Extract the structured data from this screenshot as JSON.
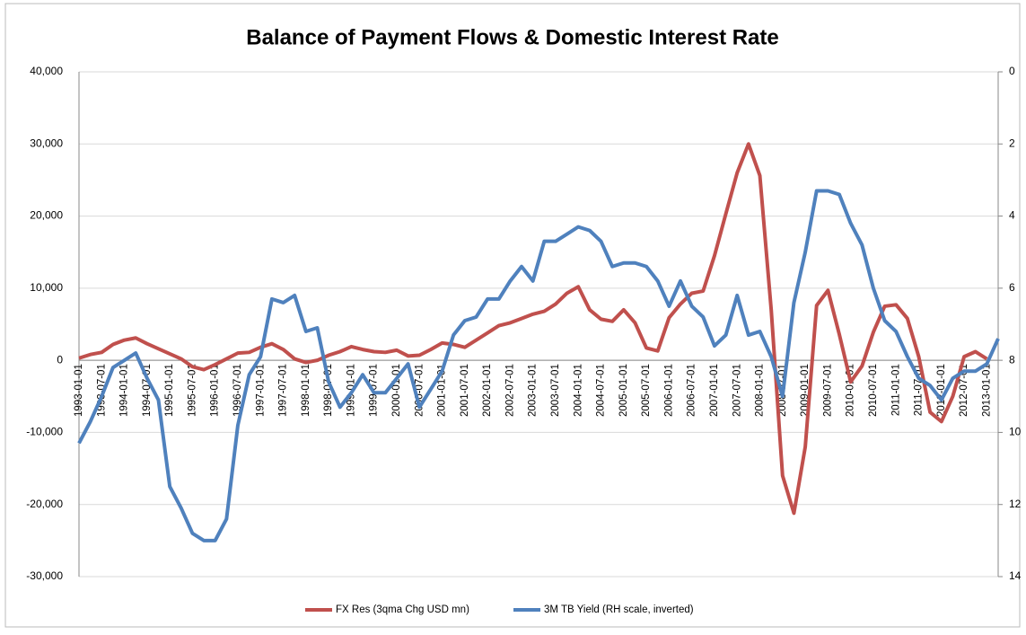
{
  "chart_data": {
    "type": "line",
    "title": "Balance of Payment Flows & Domestic Interest Rate",
    "categories": [
      "1993-01-01",
      null,
      "1993-07-01",
      null,
      "1994-01-01",
      null,
      "1994-07-01",
      null,
      "1995-01-01",
      null,
      "1995-07-01",
      null,
      "1996-01-01",
      null,
      "1996-07-01",
      null,
      "1997-01-01",
      null,
      "1997-07-01",
      null,
      "1998-01-01",
      null,
      "1998-07-01",
      null,
      "1999-01-01",
      null,
      "1999-07-01",
      null,
      "2000-01-01",
      null,
      "2000-07-01",
      null,
      "2001-01-01",
      null,
      "2001-07-01",
      null,
      "2002-01-01",
      null,
      "2002-07-01",
      null,
      "2003-01-01",
      null,
      "2003-07-01",
      null,
      "2004-01-01",
      null,
      "2004-07-01",
      null,
      "2005-01-01",
      null,
      "2005-07-01",
      null,
      "2006-01-01",
      null,
      "2006-07-01",
      null,
      "2007-01-01",
      null,
      "2007-07-01",
      null,
      "2008-01-01",
      null,
      "2008-07-01",
      null,
      "2009-01-01",
      null,
      "2009-07-01",
      null,
      "2010-01-01",
      null,
      "2010-07-01",
      null,
      "2011-01-01",
      null,
      "2011-07-01",
      null,
      "2012-01-01",
      null,
      "2012-07-01",
      null,
      "2013-01-01",
      null
    ],
    "series": [
      {
        "name": "FX Res (3qma Chg USD mn)",
        "color": "#c0504d",
        "values": [
          300,
          800,
          1100,
          2200,
          2800,
          3100,
          2300,
          1600,
          900,
          200,
          -900,
          -1300,
          -600,
          200,
          1000,
          1100,
          1800,
          2300,
          1500,
          200,
          -300,
          0,
          700,
          1200,
          1900,
          1500,
          1200,
          1100,
          1400,
          600,
          700,
          1500,
          2400,
          2200,
          1800,
          2800,
          3800,
          4800,
          5200,
          5800,
          6400,
          6800,
          7800,
          9300,
          10200,
          7000,
          5700,
          5400,
          7000,
          5200,
          1700,
          1300,
          5900,
          7800,
          9300,
          9600,
          14500,
          20300,
          26000,
          30000,
          25600,
          7000,
          -16000,
          -21200,
          -12000,
          7600,
          9700,
          3600,
          -3000,
          -800,
          3900,
          7500,
          7700,
          5800,
          500,
          -7200,
          -8500,
          -5000,
          500,
          1200,
          200,
          null
        ]
      },
      {
        "name": "3M TB Yield (RH scale, inverted)",
        "color": "#4f81bd",
        "axis": "y2",
        "values": [
          10.3,
          9.7,
          9.0,
          8.2,
          8.0,
          7.8,
          8.5,
          9.1,
          11.5,
          12.1,
          12.8,
          13.0,
          13.0,
          12.4,
          9.8,
          8.4,
          7.9,
          6.3,
          6.4,
          6.2,
          7.2,
          7.1,
          8.6,
          9.3,
          8.9,
          8.4,
          8.9,
          8.9,
          8.5,
          8.1,
          9.3,
          8.8,
          8.3,
          7.3,
          6.9,
          6.8,
          6.3,
          6.3,
          5.8,
          5.4,
          5.8,
          4.7,
          4.7,
          4.5,
          4.3,
          4.4,
          4.7,
          5.4,
          5.3,
          5.3,
          5.4,
          5.8,
          6.5,
          5.8,
          6.5,
          6.8,
          7.6,
          7.3,
          6.2,
          7.3,
          7.2,
          7.9,
          9.0,
          6.4,
          5.0,
          3.3,
          3.3,
          3.4,
          4.2,
          4.8,
          6.0,
          6.9,
          7.2,
          7.9,
          8.5,
          8.7,
          9.1,
          8.5,
          8.3,
          8.3,
          8.1,
          7.4
        ]
      }
    ],
    "ylim": [
      -30000,
      40000
    ],
    "yticks": [
      {
        "value": -30000,
        "label": "-30,000"
      },
      {
        "value": -20000,
        "label": "-20,000"
      },
      {
        "value": -10000,
        "label": "-10,000"
      },
      0,
      {
        "value": 10000,
        "label": "10,000"
      },
      {
        "value": 20000,
        "label": "20,000"
      },
      {
        "value": 30000,
        "label": "30,000"
      },
      {
        "value": 40000,
        "label": "40,000"
      }
    ],
    "y2lim": [
      0,
      14
    ],
    "y2_inverted": true,
    "y2ticks": [
      0,
      2,
      4,
      6,
      8,
      10,
      12,
      14
    ],
    "grid": true,
    "legend": "bottom"
  }
}
